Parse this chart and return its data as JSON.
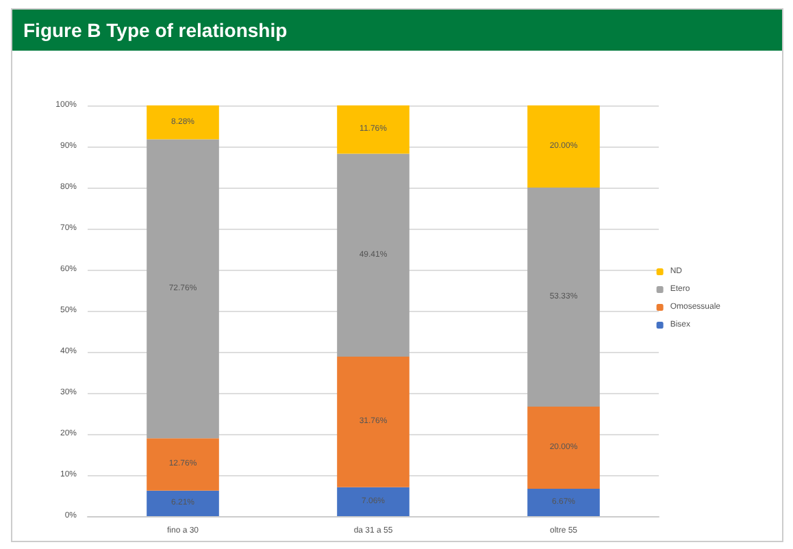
{
  "chart_data": {
    "type": "bar",
    "title": "Figure B Type of relationship",
    "stacked": true,
    "categories": [
      "fino a 30",
      "da 31 a 55",
      "oltre 55"
    ],
    "series": [
      {
        "name": "Bisex",
        "color": "#4472c4",
        "values": [
          6.21,
          7.06,
          6.67
        ],
        "value_labels": [
          "6.21%",
          "7.06%",
          "6.67%"
        ]
      },
      {
        "name": "Omosessuale",
        "color": "#ed7d31",
        "values": [
          12.76,
          31.76,
          20.0
        ],
        "value_labels": [
          "12.76%",
          "31.76%",
          "20.00%"
        ]
      },
      {
        "name": "Etero",
        "color": "#a5a5a5",
        "values": [
          72.76,
          49.41,
          53.33
        ],
        "value_labels": [
          "72.76%",
          "49.41%",
          "53.33%"
        ]
      },
      {
        "name": "ND",
        "color": "#ffc000",
        "values": [
          8.28,
          11.76,
          20.0
        ],
        "value_labels": [
          "8.28%",
          "11.76%",
          "20.00%"
        ]
      }
    ],
    "ylim": [
      0,
      100
    ],
    "yticks": [
      {
        "value": 0,
        "label": "0%"
      },
      {
        "value": 10,
        "label": "10%"
      },
      {
        "value": 20,
        "label": "20%"
      },
      {
        "value": 30,
        "label": "30%"
      },
      {
        "value": 40,
        "label": "40%"
      },
      {
        "value": 50,
        "label": "50%"
      },
      {
        "value": 60,
        "label": "60%"
      },
      {
        "value": 70,
        "label": "70%"
      },
      {
        "value": 80,
        "label": "80%"
      },
      {
        "value": 90,
        "label": "90%"
      },
      {
        "value": 100,
        "label": "100%"
      }
    ],
    "grid": "y",
    "legend": "right"
  }
}
